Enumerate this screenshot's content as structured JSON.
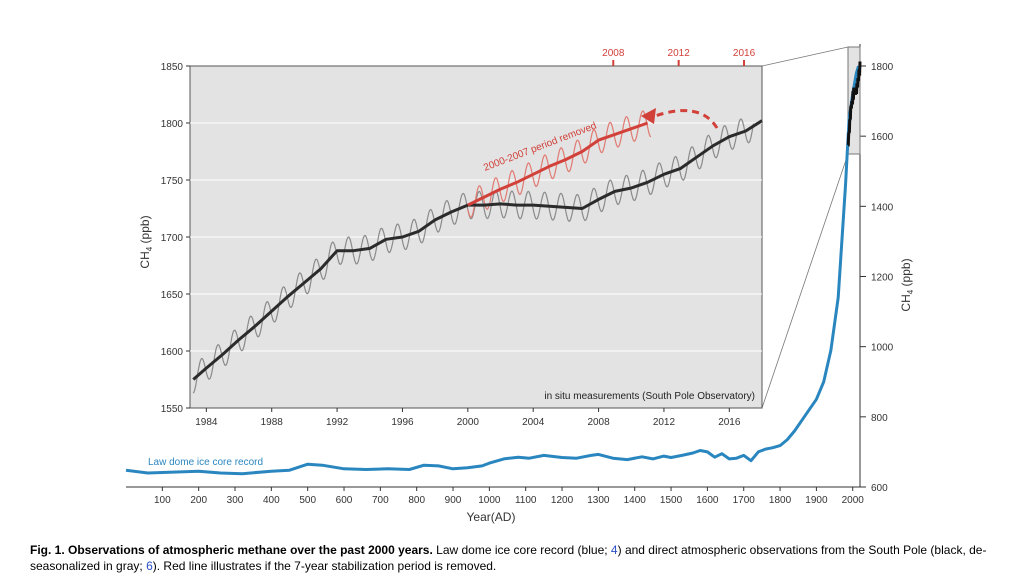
{
  "caption": {
    "title": "Fig. 1. Observations of atmospheric methane over the past 2000 years.",
    "part1": " Law dome ice core record (blue; ",
    "ref1": "4",
    "part2": ") and direct atmospheric observations from the South Pole (black, de-seasonalized in gray; ",
    "ref2": "6",
    "part3": "). Red line illustrates if the 7-year stabilization period is removed."
  },
  "colors": {
    "ice_core": "#2a86bf",
    "observed": "#2b2b2b",
    "seasonal": "#8a8a8a",
    "removed": "#d2403a",
    "panel_bg": "#e3e3e3"
  },
  "chart_data": [
    {
      "type": "line",
      "title": "",
      "xlabel": "Year(AD)",
      "ylabel": "CH4 (ppb)",
      "xlim": [
        0,
        2020
      ],
      "ylim": [
        600,
        1850
      ],
      "y_axis_side": "right",
      "x_ticks": [
        100,
        200,
        300,
        400,
        500,
        600,
        700,
        800,
        900,
        1000,
        1100,
        1200,
        1300,
        1400,
        1500,
        1600,
        1700,
        1800,
        1900,
        2000
      ],
      "y_ticks": [
        600,
        800,
        1000,
        1200,
        1400,
        1600,
        1800
      ],
      "series": [
        {
          "name": "Law dome ice core record",
          "x": [
            0,
            60,
            120,
            200,
            260,
            320,
            400,
            450,
            500,
            540,
            600,
            660,
            720,
            780,
            820,
            860,
            900,
            940,
            980,
            1000,
            1040,
            1080,
            1110,
            1150,
            1200,
            1240,
            1280,
            1300,
            1340,
            1380,
            1420,
            1450,
            1480,
            1500,
            1530,
            1560,
            1580,
            1600,
            1620,
            1640,
            1660,
            1680,
            1700,
            1720,
            1740,
            1760,
            1780,
            1800,
            1820,
            1840,
            1860,
            1880,
            1900,
            1920,
            1940,
            1960,
            1980,
            1990,
            2000,
            2010,
            2016
          ],
          "y": [
            648,
            640,
            642,
            645,
            640,
            638,
            645,
            648,
            665,
            662,
            652,
            650,
            652,
            650,
            662,
            660,
            652,
            655,
            660,
            668,
            680,
            685,
            682,
            690,
            684,
            682,
            690,
            693,
            682,
            678,
            686,
            680,
            688,
            684,
            690,
            697,
            704,
            700,
            685,
            695,
            680,
            682,
            690,
            675,
            700,
            708,
            712,
            718,
            735,
            760,
            790,
            820,
            850,
            900,
            990,
            1140,
            1460,
            1650,
            1720,
            1780,
            1800
          ]
        }
      ]
    },
    {
      "type": "line",
      "title": "",
      "xlabel": "",
      "ylabel": "CH4 (ppb)",
      "xlim": [
        1983,
        2018
      ],
      "ylim": [
        1550,
        1850
      ],
      "top_axis_label_color": "#d2403a",
      "top_ticks": [
        2008,
        2012,
        2016
      ],
      "x_ticks": [
        1984,
        1988,
        1992,
        1996,
        2000,
        2004,
        2008,
        2012,
        2016
      ],
      "y_ticks": [
        1550,
        1600,
        1650,
        1700,
        1750,
        1800,
        1850
      ],
      "annotations": [
        {
          "text": "in situ measurements (South Pole Observatory)",
          "position": "bottom-right"
        },
        {
          "text": "2000-2007 period removed",
          "color": "#d2403a"
        }
      ],
      "seasonal_amplitude_ppb": 12,
      "series": [
        {
          "name": "de-seasonalized South Pole",
          "x": [
            1983.2,
            1984,
            1985,
            1986,
            1987,
            1988,
            1989,
            1990,
            1991,
            1992,
            1993,
            1994,
            1995,
            1996,
            1997,
            1998,
            1999,
            2000,
            2001,
            2002,
            2003,
            2004,
            2005,
            2006,
            2007,
            2008,
            2009,
            2010,
            2011,
            2012,
            2013,
            2014,
            2015,
            2016,
            2017,
            2018
          ],
          "y": [
            1575,
            1585,
            1597,
            1610,
            1622,
            1635,
            1648,
            1660,
            1672,
            1688,
            1688,
            1690,
            1698,
            1700,
            1705,
            1715,
            1722,
            1728,
            1728,
            1729,
            1728,
            1728,
            1727,
            1726,
            1725,
            1733,
            1740,
            1743,
            1748,
            1755,
            1760,
            1770,
            1780,
            1788,
            1793,
            1802
          ]
        },
        {
          "name": "2000-2007 period removed",
          "x": [
            2000,
            2001,
            2002,
            2003,
            2004,
            2005,
            2006,
            2007,
            2008,
            2009,
            2010,
            2011
          ],
          "y": [
            1728,
            1735,
            1742,
            1748,
            1755,
            1762,
            1768,
            1775,
            1785,
            1790,
            1795,
            1800
          ]
        }
      ]
    }
  ]
}
